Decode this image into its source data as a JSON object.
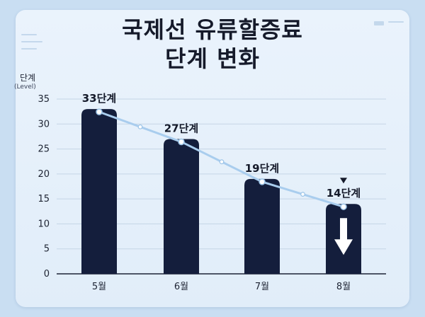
{
  "title_line1": "국제선 유류할증료",
  "title_line2": "단계 변화",
  "y_axis_label": "단계",
  "y_axis_unit": "(Level)",
  "chart_data": {
    "type": "bar",
    "title": "국제선 유류할증료 단계 변화",
    "ylabel": "단계 (Level)",
    "xlabel": "",
    "categories": [
      "5월",
      "6월",
      "7월",
      "8월"
    ],
    "values": [
      33,
      27,
      19,
      14
    ],
    "data_labels": [
      "33단계",
      "27단계",
      "19단계",
      "14단계"
    ],
    "ylim": [
      0,
      35
    ],
    "yticks": [
      0,
      5,
      10,
      15,
      20,
      25,
      30,
      35
    ],
    "grid": true,
    "trend_line": true,
    "legend": "none",
    "colors": {
      "bar": "#141e3c",
      "trend": "#a9cdee",
      "arrow": "#ffffff"
    }
  }
}
